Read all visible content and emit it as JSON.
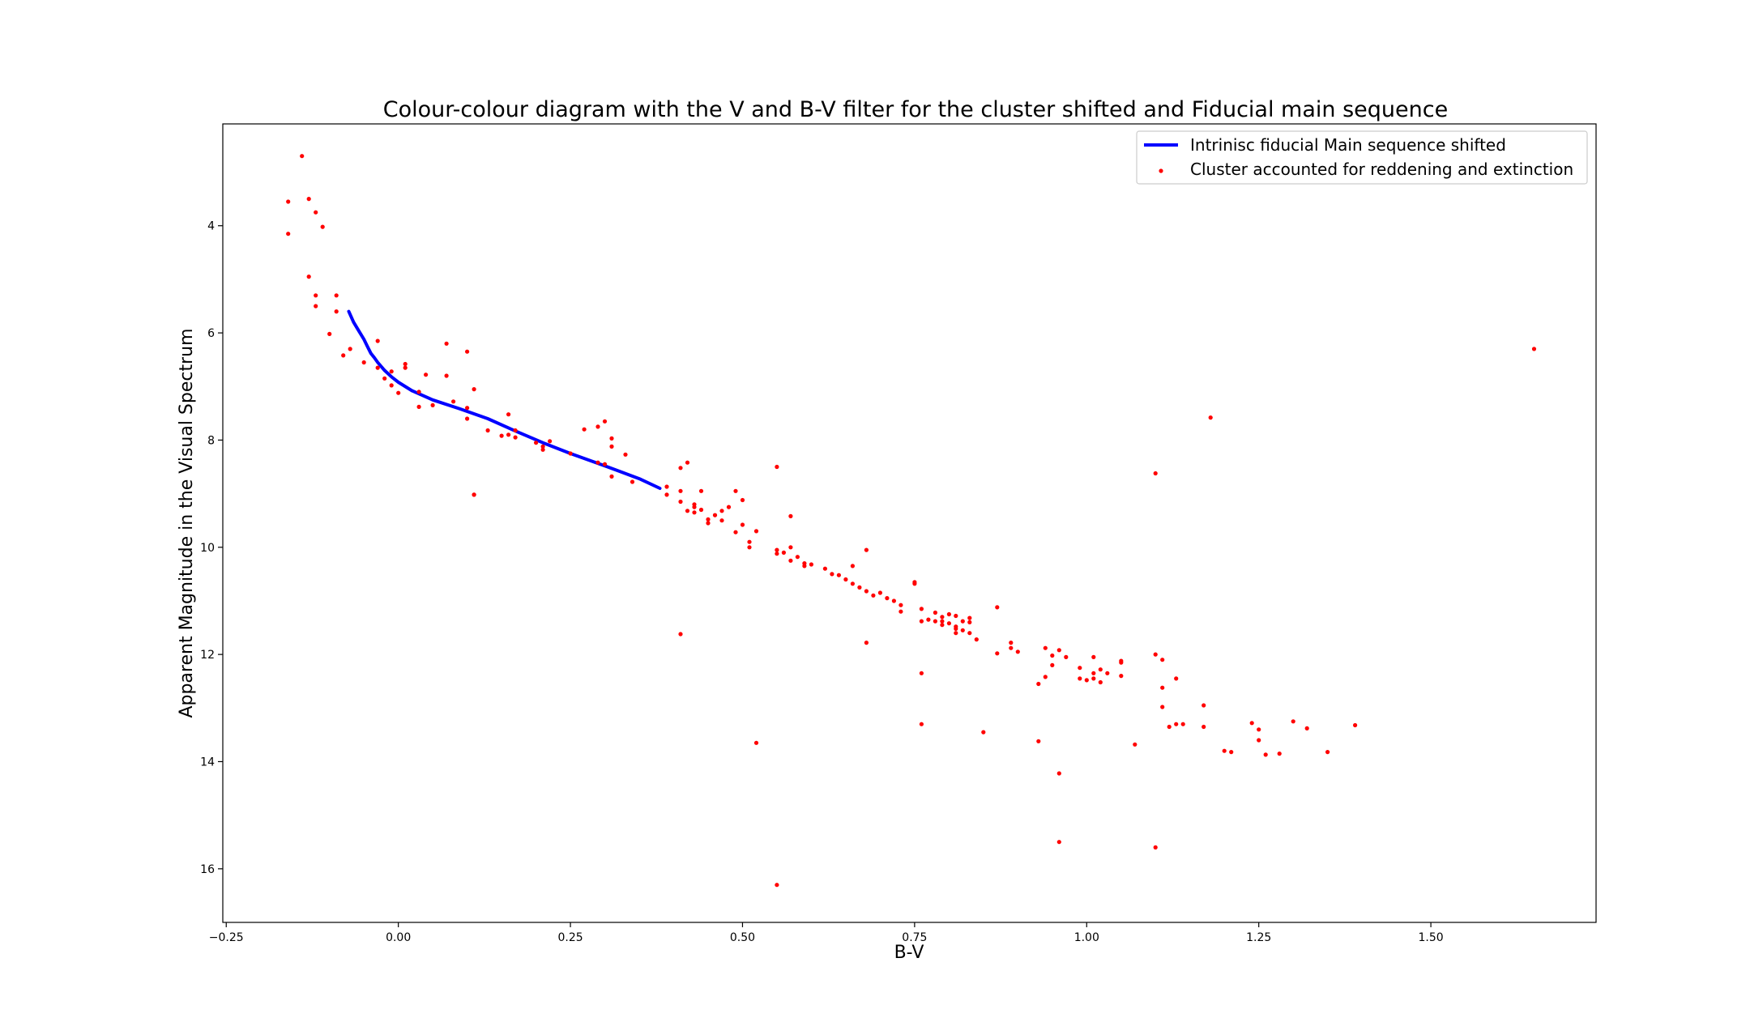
{
  "chart_data": {
    "type": "scatter",
    "title": "Colour-colour diagram with the V and B-V filter for the cluster shifted and Fiducial main sequence",
    "xlabel": "B-V",
    "ylabel": "Apparent Magnitude in the Visual Spectrum",
    "xlim": [
      -0.255,
      1.74
    ],
    "ylim": [
      17.0,
      2.1
    ],
    "y_inverted": true,
    "xticks": [
      -0.25,
      0.0,
      0.25,
      0.5,
      0.75,
      1.0,
      1.25,
      1.5
    ],
    "xtick_labels": [
      "−0.25",
      "0.00",
      "0.25",
      "0.50",
      "0.75",
      "1.00",
      "1.25",
      "1.50"
    ],
    "yticks": [
      4,
      6,
      8,
      10,
      12,
      14,
      16
    ],
    "ytick_labels": [
      "4",
      "6",
      "8",
      "10",
      "12",
      "14",
      "16"
    ],
    "grid": false,
    "legend_position": "top-right",
    "series": [
      {
        "name": "Intrinisc fiducial Main sequence shifted",
        "kind": "line",
        "color": "#0000ff",
        "x": [
          -0.072,
          -0.065,
          -0.058,
          -0.05,
          -0.045,
          -0.04,
          -0.035,
          -0.03,
          -0.02,
          -0.01,
          0.0,
          0.02,
          0.05,
          0.09,
          0.13,
          0.17,
          0.21,
          0.25,
          0.3,
          0.35,
          0.38
        ],
        "y": [
          5.6,
          5.8,
          5.95,
          6.12,
          6.25,
          6.38,
          6.46,
          6.55,
          6.7,
          6.82,
          6.92,
          7.08,
          7.25,
          7.42,
          7.6,
          7.83,
          8.05,
          8.25,
          8.48,
          8.72,
          8.9
        ]
      },
      {
        "name": "Cluster accounted for reddening and extinction",
        "kind": "scatter",
        "color": "#ff0000",
        "x": [
          -0.14,
          -0.16,
          -0.16,
          -0.13,
          -0.12,
          -0.11,
          -0.13,
          -0.12,
          -0.12,
          -0.1,
          -0.09,
          -0.09,
          -0.07,
          -0.08,
          -0.05,
          -0.03,
          -0.02,
          -0.01,
          -0.01,
          -0.03,
          0.0,
          0.01,
          0.01,
          0.03,
          0.03,
          0.04,
          0.05,
          0.07,
          0.07,
          0.08,
          0.1,
          0.1,
          0.1,
          0.11,
          0.11,
          0.13,
          0.15,
          0.16,
          0.16,
          0.17,
          0.17,
          0.2,
          0.21,
          0.21,
          0.22,
          0.25,
          0.27,
          0.29,
          0.3,
          0.31,
          0.31,
          0.33,
          0.3,
          0.29,
          0.31,
          0.34,
          0.39,
          0.39,
          0.41,
          0.41,
          0.42,
          0.41,
          0.42,
          0.43,
          0.43,
          0.44,
          0.44,
          0.43,
          0.45,
          0.45,
          0.46,
          0.47,
          0.47,
          0.48,
          0.49,
          0.49,
          0.5,
          0.5,
          0.51,
          0.51,
          0.52,
          0.55,
          0.55,
          0.56,
          0.57,
          0.57,
          0.58,
          0.59,
          0.59,
          0.6,
          0.62,
          0.63,
          0.64,
          0.65,
          0.66,
          0.67,
          0.68,
          0.69,
          0.7,
          0.71,
          0.72,
          0.73,
          0.73,
          0.75,
          0.75,
          0.76,
          0.76,
          0.77,
          0.78,
          0.79,
          0.79,
          0.8,
          0.8,
          0.81,
          0.81,
          0.82,
          0.83,
          0.83,
          0.81,
          0.83,
          0.84,
          0.78,
          0.79,
          0.81,
          0.82,
          0.57,
          0.55,
          0.68,
          0.66,
          0.68,
          0.76,
          0.87,
          0.89,
          0.89,
          0.9,
          0.87,
          0.93,
          0.94,
          0.95,
          0.95,
          0.96,
          0.97,
          0.99,
          1.0,
          1.01,
          1.01,
          1.02,
          1.03,
          1.02,
          1.05,
          1.05,
          0.93,
          0.94,
          0.99,
          1.01,
          1.05,
          1.1,
          1.11,
          1.11,
          1.13,
          1.11,
          1.13,
          1.12,
          1.14,
          1.17,
          1.17,
          1.24,
          1.25,
          1.25,
          1.3,
          1.32,
          1.39,
          1.35,
          1.28,
          1.26,
          1.2,
          1.21,
          0.96,
          1.07,
          0.85,
          0.76,
          0.96,
          1.1,
          0.55,
          0.52,
          0.41,
          0.11,
          1.1,
          1.18,
          1.65
        ],
        "y": [
          2.7,
          3.55,
          4.15,
          3.5,
          3.75,
          4.02,
          4.95,
          5.3,
          5.5,
          6.02,
          5.3,
          5.6,
          6.3,
          6.42,
          6.55,
          6.15,
          6.85,
          6.72,
          6.98,
          6.65,
          7.12,
          6.58,
          6.65,
          7.1,
          7.38,
          6.78,
          7.35,
          6.2,
          6.8,
          7.28,
          6.35,
          7.4,
          7.6,
          7.05,
          9.02,
          7.82,
          7.92,
          7.52,
          7.9,
          7.95,
          7.82,
          8.05,
          8.12,
          8.18,
          8.02,
          8.25,
          7.8,
          7.75,
          7.65,
          7.97,
          8.12,
          8.27,
          8.45,
          8.42,
          8.68,
          8.78,
          8.87,
          9.02,
          8.52,
          9.15,
          8.42,
          8.95,
          9.32,
          9.2,
          9.35,
          8.95,
          9.3,
          9.25,
          9.48,
          9.55,
          9.4,
          9.5,
          9.32,
          9.25,
          8.95,
          9.72,
          9.12,
          9.58,
          9.9,
          10.0,
          9.7,
          10.12,
          10.05,
          10.1,
          10.25,
          10.0,
          10.18,
          10.3,
          10.35,
          10.32,
          10.4,
          10.5,
          10.52,
          10.6,
          10.68,
          10.75,
          10.82,
          10.9,
          10.85,
          10.95,
          11.0,
          11.08,
          11.2,
          10.65,
          10.68,
          11.15,
          11.38,
          11.35,
          11.22,
          11.3,
          11.38,
          11.25,
          11.42,
          11.28,
          11.48,
          11.38,
          11.32,
          11.4,
          11.6,
          11.6,
          11.72,
          11.38,
          11.45,
          11.52,
          11.55,
          9.42,
          8.5,
          10.05,
          10.35,
          11.78,
          12.35,
          11.12,
          11.78,
          11.88,
          11.95,
          11.98,
          12.55,
          11.88,
          12.02,
          12.2,
          11.92,
          12.05,
          12.25,
          12.48,
          12.05,
          12.35,
          12.28,
          12.35,
          12.52,
          12.12,
          12.15,
          13.62,
          12.42,
          12.45,
          12.45,
          12.4,
          12.0,
          12.1,
          12.62,
          12.45,
          12.98,
          13.3,
          13.35,
          13.3,
          12.95,
          13.35,
          13.28,
          13.4,
          13.6,
          13.25,
          13.38,
          13.32,
          13.82,
          13.85,
          13.87,
          13.8,
          13.82,
          14.22,
          13.68,
          13.45,
          13.3,
          15.5,
          15.6,
          16.3,
          13.65,
          11.62,
          9.02,
          8.62,
          7.58,
          6.3
        ]
      }
    ]
  }
}
